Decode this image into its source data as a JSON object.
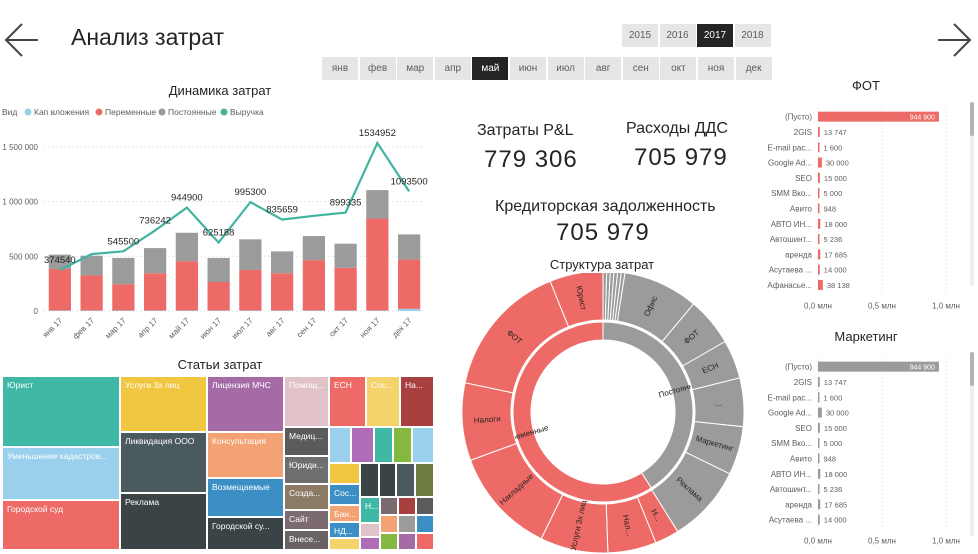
{
  "header": {
    "title": "Анализ затрат",
    "years": [
      "2015",
      "2016",
      "2017",
      "2018"
    ],
    "selected_year": "2017",
    "months": [
      "янв",
      "фев",
      "мар",
      "апр",
      "май",
      "июн",
      "июл",
      "авг",
      "сен",
      "окт",
      "ноя",
      "дек"
    ],
    "selected_month": "май"
  },
  "colors": {
    "cap": "#9ad0ec",
    "variable": "#ed6a66",
    "fixed": "#9b9b9b",
    "revenue": "#42b3a1",
    "selected": "#252423"
  },
  "kpis": {
    "pl_label": "Затраты P&L",
    "pl_value": "779 306",
    "dds_label": "Расходы ДДС",
    "dds_value": "705 979",
    "credit_label": "Кредиторская задолженность",
    "credit_value": "705 979"
  },
  "chart_data": [
    {
      "type": "bar",
      "title": "Динамика затрат",
      "legend_title": "Вид",
      "categories": [
        "янв 17",
        "фев 17",
        "мар 17",
        "апр 17",
        "май 17",
        "июн 17",
        "июл 17",
        "авг 17",
        "сен 17",
        "окт 17",
        "ноя 17",
        "дек 17"
      ],
      "y_ticks": [
        "0",
        "500 000",
        "1 000 000",
        "1 500 000"
      ],
      "ylim": [
        0,
        1700000
      ],
      "series": [
        {
          "name": "Кап вложения",
          "kind": "bar",
          "values": [
            5000,
            5000,
            5000,
            5000,
            5000,
            5000,
            5000,
            5000,
            5000,
            5000,
            5000,
            20000
          ]
        },
        {
          "name": "Переменные",
          "kind": "bar",
          "values": [
            380000,
            320000,
            240000,
            340000,
            450000,
            260000,
            370000,
            340000,
            460000,
            390000,
            840000,
            450000
          ]
        },
        {
          "name": "Постоянные",
          "kind": "bar",
          "values": [
            130000,
            180000,
            240000,
            230000,
            260000,
            220000,
            280000,
            200000,
            220000,
            220000,
            260000,
            230000
          ]
        },
        {
          "name": "Выручка",
          "kind": "line",
          "values": [
            374540,
            520000,
            545500,
            736242,
            944900,
            625188,
            995300,
            835659,
            870000,
            899335,
            1534952,
            1093500
          ]
        }
      ],
      "data_labels": [
        {
          "label": "374540",
          "index": 0
        },
        {
          "label": "545500",
          "index": 2
        },
        {
          "label": "736242",
          "index": 3
        },
        {
          "label": "944900",
          "index": 4
        },
        {
          "label": "625188",
          "index": 5
        },
        {
          "label": "995300",
          "index": 6
        },
        {
          "label": "835659",
          "index": 7
        },
        {
          "label": "899335",
          "index": 9
        },
        {
          "label": "1534952",
          "index": 10
        },
        {
          "label": "1093500",
          "index": 11
        }
      ]
    },
    {
      "type": "bar",
      "orientation": "horizontal",
      "title": "ФОТ",
      "categories": [
        "(Пусто)",
        "2GIS",
        "E-mail рас...",
        "Google Ad...",
        "SEO",
        "SMM Вко...",
        "Авито",
        "АВТО ИН...",
        "Автошинт...",
        "аренда",
        "Асутаева ...",
        "Афанасье..."
      ],
      "values": [
        944900,
        13747,
        1600,
        30000,
        15000,
        5000,
        948,
        18000,
        5236,
        17685,
        14000,
        38138
      ],
      "labels": [
        "944 900",
        "13 747",
        "1 600",
        "30 000",
        "15 000",
        "5 000",
        "948",
        "18 000",
        "5 236",
        "17 685",
        "14 000",
        "38 138"
      ],
      "x_ticks": [
        "0,0 млн",
        "0,5 млн",
        "1,0 млн"
      ],
      "xlim": [
        0,
        1000000
      ],
      "bar_color": "#ed6a66"
    },
    {
      "type": "bar",
      "orientation": "horizontal",
      "title": "Маркетинг",
      "categories": [
        "(Пусто)",
        "2GIS",
        "E-mail рас...",
        "Google Ad...",
        "SEO",
        "SMM Вко...",
        "Авито",
        "АВТО ИН...",
        "Автошинт...",
        "аренда",
        "Асутаева ..."
      ],
      "values": [
        944900,
        13747,
        1600,
        30000,
        15000,
        5000,
        948,
        18000,
        5236,
        17685,
        14000
      ],
      "labels": [
        "944 900",
        "13 747",
        "1 600",
        "30 000",
        "15 000",
        "5 000",
        "948",
        "18 000",
        "5 236",
        "17 685",
        "14 000"
      ],
      "x_ticks": [
        "0,0 млн",
        "0,5 млн",
        "1,0 млн"
      ],
      "xlim": [
        0,
        1000000
      ],
      "bar_color": "#9b9b9b"
    },
    {
      "type": "treemap",
      "title": "Статьи затрат",
      "labels": [
        "Юрист",
        "Уменьшение кадастров...",
        "Городской суд",
        "Услуги 3х лиц",
        "Ликвидация ООО",
        "Реклама",
        "Лицензия МЧС",
        "Консультация",
        "Возмещаемые",
        "Городской су...",
        "Помощ...",
        "Медиц...",
        "Юриди...",
        "Созда...",
        "Сайт",
        "Внесе...",
        "ЕСН",
        "Сос...",
        "На...",
        "Сос...",
        "Н...",
        "Бан...",
        "НД..."
      ]
    },
    {
      "type": "pie",
      "variant": "sunburst",
      "title": "Структура затрат",
      "inner_labels": [
        "Переменные",
        "Постоянные"
      ],
      "outer_labels": [
        "Юрист",
        "ФОТ",
        "Налоги",
        "Накладные",
        "Услуги 3х лиц",
        "Возмещаем...",
        "Нал...",
        "Н...",
        "Офис",
        "ФОТ",
        "ЕСН",
        "...",
        "Маркетинг",
        "Реклама"
      ],
      "inner_values": [
        59,
        41
      ]
    }
  ]
}
